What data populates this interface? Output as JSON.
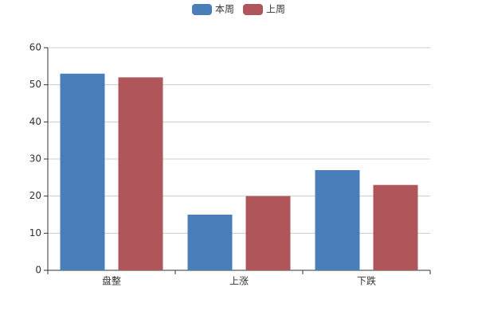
{
  "chart_data": {
    "type": "bar",
    "categories": [
      "盘整",
      "上涨",
      "下跌"
    ],
    "series": [
      {
        "name": "本周",
        "color": "#4a7ebb",
        "values": [
          53,
          15,
          27
        ]
      },
      {
        "name": "上周",
        "color": "#b0555a",
        "values": [
          52,
          20,
          23
        ]
      }
    ],
    "ylim": [
      0,
      60
    ],
    "yticks": [
      0,
      10,
      20,
      30,
      40,
      50,
      60
    ],
    "grid": true,
    "legend": "top"
  }
}
